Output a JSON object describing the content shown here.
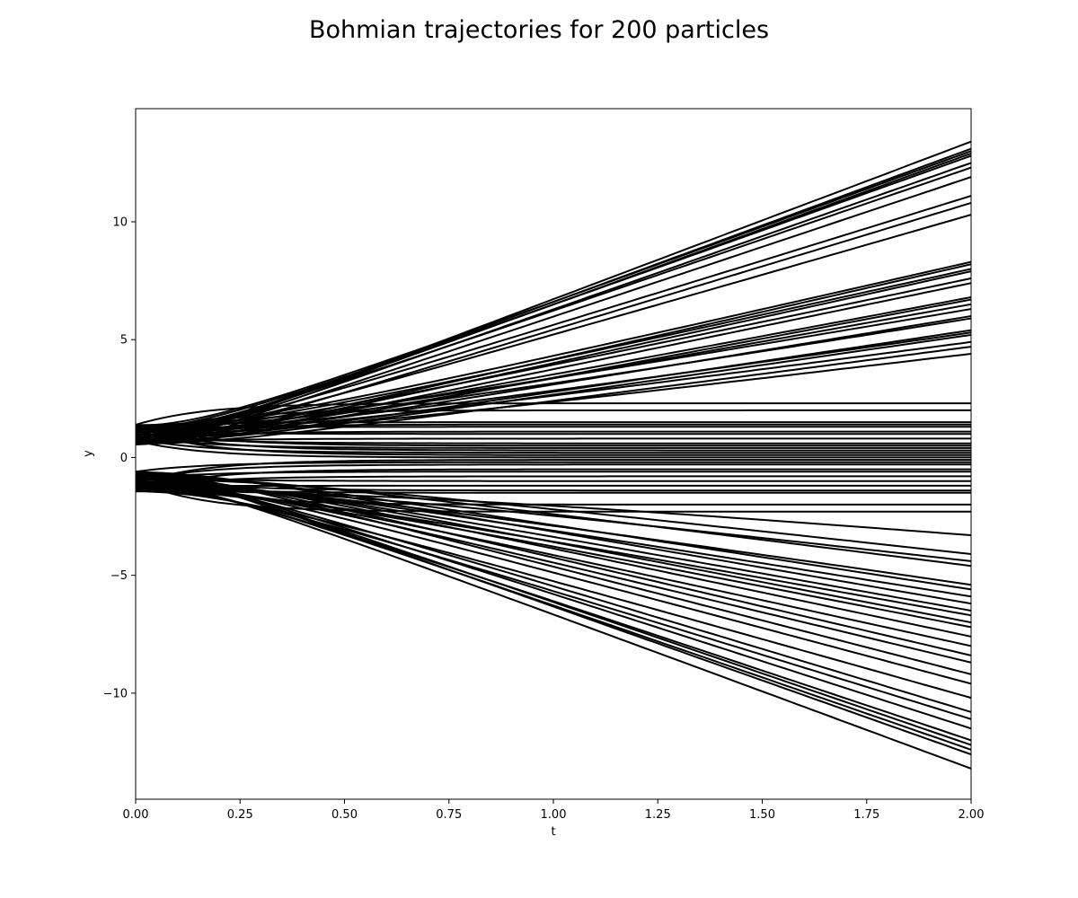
{
  "chart_data": {
    "type": "line",
    "title": "Bohmian trajectories for 200 particles",
    "xlabel": "t",
    "ylabel": "y",
    "xlim": [
      0,
      2
    ],
    "ylim": [
      -14.5,
      14.8
    ],
    "xticks": [
      0,
      0.25,
      0.5,
      0.75,
      1.0,
      1.25,
      1.5,
      1.75,
      2.0
    ],
    "xtick_labels": [
      "0.00",
      "0.25",
      "0.50",
      "0.75",
      "1.00",
      "1.25",
      "1.50",
      "1.75",
      "2.00"
    ],
    "yticks": [
      -10,
      -5,
      0,
      5,
      10
    ],
    "ytick_labels": [
      "−10",
      "−5",
      "0",
      "5",
      "10"
    ],
    "grid": false,
    "legend": "none",
    "line_color": "#000000",
    "particle_count": 200,
    "final_y_values": [
      13.4,
      13.1,
      13.0,
      12.9,
      12.8,
      12.5,
      12.3,
      11.9,
      11.1,
      10.8,
      10.3,
      8.3,
      8.2,
      8.0,
      7.9,
      7.6,
      7.4,
      6.8,
      6.7,
      6.5,
      6.3,
      6.0,
      5.9,
      5.4,
      5.3,
      5.2,
      4.9,
      4.7,
      4.4,
      2.3,
      2.0,
      1.5,
      1.4,
      1.3,
      1.1,
      1.0,
      0.8,
      0.6,
      0.5,
      0.4,
      0.3,
      0.2,
      0.1,
      0.0,
      -0.1,
      -0.2,
      -0.3,
      -0.5,
      -0.6,
      -0.8,
      -1.0,
      -1.2,
      -1.4,
      -1.5,
      -2.0,
      -2.3,
      -3.3,
      -4.1,
      -4.4,
      -4.6,
      -5.4,
      -5.6,
      -5.9,
      -6.2,
      -6.5,
      -6.7,
      -7.0,
      -7.2,
      -7.6,
      -8.0,
      -8.4,
      -8.7,
      -9.2,
      -9.6,
      -10.2,
      -10.8,
      -11.1,
      -11.5,
      -12.0,
      -12.2,
      -12.4,
      -12.6,
      -13.2
    ]
  }
}
